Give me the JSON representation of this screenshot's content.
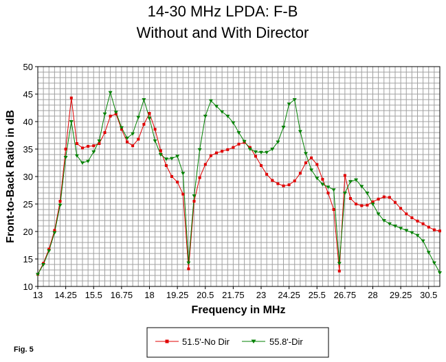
{
  "chart_data": {
    "type": "line",
    "title": [
      "14-30 MHz LPDA: F-B",
      "Without and With Director"
    ],
    "xlabel": "Frequency in MHz",
    "ylabel": "Front-to-Back Ratio in dB",
    "xlim": [
      13,
      31
    ],
    "ylim": [
      10,
      50
    ],
    "x_tick_labels": [
      "13",
      "14.25",
      "15.5",
      "16.75",
      "18",
      "19.25",
      "20.5",
      "21.75",
      "23",
      "24.25",
      "25.5",
      "26.75",
      "28",
      "29.25",
      "30.5"
    ],
    "y_tick_labels": [
      "10",
      "15",
      "20",
      "25",
      "30",
      "35",
      "40",
      "45",
      "50"
    ],
    "grid": true,
    "legend_position": "bottom",
    "series": [
      {
        "name": "51.5'-No Dir",
        "color": "#e00000",
        "marker": "square",
        "x": [
          13.0,
          13.25,
          13.5,
          13.75,
          14.0,
          14.25,
          14.5,
          14.75,
          15.0,
          15.25,
          15.5,
          15.75,
          16.0,
          16.25,
          16.5,
          16.75,
          17.0,
          17.25,
          17.5,
          17.75,
          18.0,
          18.25,
          18.5,
          18.75,
          19.0,
          19.25,
          19.5,
          19.75,
          20.0,
          20.25,
          20.5,
          20.75,
          21.0,
          21.25,
          21.5,
          21.75,
          22.0,
          22.25,
          22.5,
          22.75,
          23.0,
          23.25,
          23.5,
          23.75,
          24.0,
          24.25,
          24.5,
          24.75,
          25.0,
          25.25,
          25.5,
          25.75,
          26.0,
          26.25,
          26.5,
          26.75,
          27.0,
          27.25,
          27.5,
          27.75,
          28.0,
          28.25,
          28.5,
          28.75,
          29.0,
          29.25,
          29.5,
          29.75,
          30.0,
          30.25,
          30.5,
          30.75,
          31.0
        ],
        "y": [
          12.2,
          14.2,
          16.8,
          20.2,
          25.5,
          35.0,
          44.3,
          36.0,
          35.2,
          35.5,
          35.6,
          36.0,
          38.0,
          41.0,
          41.4,
          38.6,
          36.3,
          35.6,
          36.8,
          39.5,
          41.5,
          38.6,
          34.7,
          32.0,
          30.0,
          29.0,
          26.8,
          13.2,
          25.5,
          29.8,
          32.2,
          33.8,
          34.3,
          34.6,
          34.9,
          35.3,
          35.9,
          36.2,
          35.3,
          33.7,
          32.0,
          30.4,
          29.3,
          28.7,
          28.3,
          28.5,
          29.2,
          30.6,
          32.5,
          33.4,
          32.2,
          29.5,
          27.0,
          24.0,
          12.8,
          30.2,
          26.0,
          25.0,
          24.7,
          24.8,
          25.4,
          25.9,
          26.3,
          26.2,
          25.3,
          24.2,
          23.2,
          22.5,
          21.9,
          21.4,
          20.8,
          20.3,
          20.1
        ]
      },
      {
        "name": "55.8'-Dir",
        "color": "#008000",
        "marker": "triangle",
        "x": [
          13.0,
          13.25,
          13.5,
          13.75,
          14.0,
          14.25,
          14.5,
          14.75,
          15.0,
          15.25,
          15.5,
          15.75,
          16.0,
          16.25,
          16.5,
          16.75,
          17.0,
          17.25,
          17.5,
          17.75,
          18.0,
          18.25,
          18.5,
          18.75,
          19.0,
          19.25,
          19.5,
          19.75,
          20.0,
          20.25,
          20.5,
          20.75,
          21.0,
          21.25,
          21.5,
          21.75,
          22.0,
          22.25,
          22.5,
          22.75,
          23.0,
          23.25,
          23.5,
          23.75,
          24.0,
          24.25,
          24.5,
          24.75,
          25.0,
          25.25,
          25.5,
          25.75,
          26.0,
          26.25,
          26.5,
          26.75,
          27.0,
          27.25,
          27.5,
          27.75,
          28.0,
          28.25,
          28.5,
          28.75,
          29.0,
          29.25,
          29.5,
          29.75,
          30.0,
          30.25,
          30.5,
          30.75,
          31.0
        ],
        "y": [
          12.2,
          14.0,
          16.5,
          19.8,
          24.8,
          33.5,
          40.0,
          33.8,
          32.5,
          32.8,
          34.5,
          36.5,
          41.4,
          45.3,
          41.7,
          38.9,
          37.0,
          37.8,
          40.8,
          44.0,
          40.6,
          36.5,
          34.0,
          33.2,
          33.3,
          33.7,
          30.6,
          14.3,
          26.5,
          34.9,
          41.0,
          43.8,
          42.8,
          41.8,
          41.0,
          39.8,
          38.0,
          36.4,
          35.0,
          34.5,
          34.4,
          34.4,
          35.0,
          36.3,
          39.0,
          43.2,
          44.0,
          38.2,
          34.2,
          31.2,
          29.7,
          28.6,
          28.1,
          27.6,
          14.2,
          27.0,
          29.1,
          29.4,
          28.2,
          27.0,
          25.0,
          23.2,
          22.0,
          21.4,
          21.0,
          20.6,
          20.2,
          19.8,
          19.3,
          18.3,
          16.2,
          14.3,
          12.5
        ]
      }
    ],
    "annotation": "Fig. 5"
  }
}
